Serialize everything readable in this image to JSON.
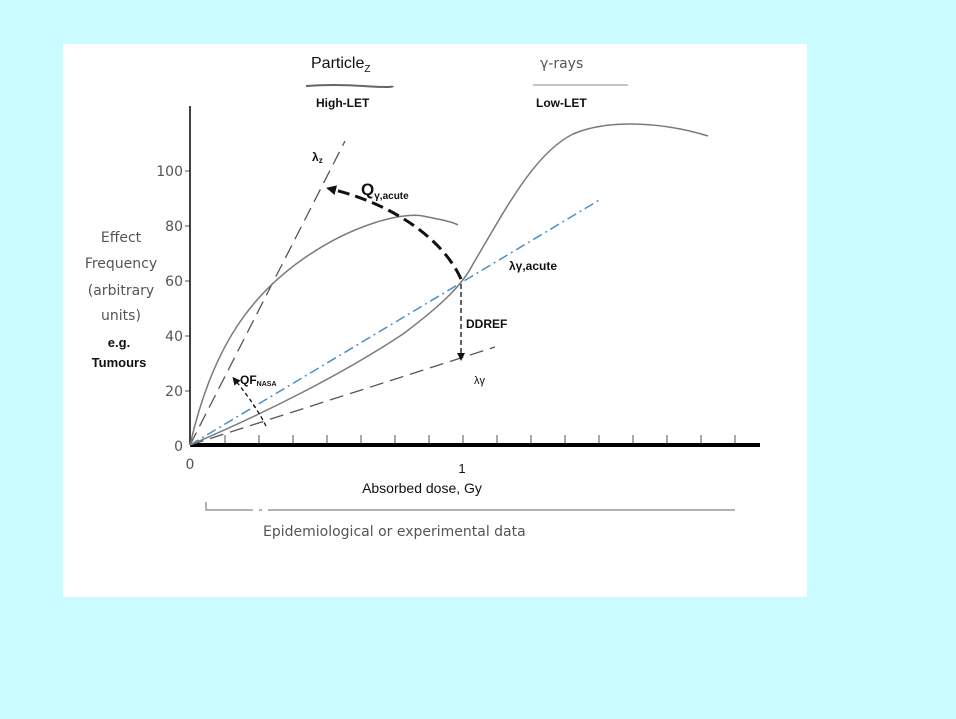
{
  "figure": {
    "header": {
      "particle": "Particle",
      "particle_sub": "Z",
      "high_let": "High-LET",
      "gamma": "γ-rays",
      "low_let": "Low-LET"
    },
    "y_axis": {
      "label_lines": [
        "Effect",
        "Frequency",
        "(arbitrary",
        "units)"
      ],
      "example_lines": [
        "e.g.",
        "Tumours"
      ],
      "ticks": [
        "0",
        "20",
        "40",
        "60",
        "80",
        "100"
      ]
    },
    "x_axis": {
      "ticks": [
        "0",
        "1"
      ],
      "label": "Absorbed dose, Gy",
      "range_note": "Epidemiological or experimental data"
    },
    "annotations": {
      "lambda_z": "λ",
      "lambda_z_sub": "z",
      "q_label": "Q",
      "q_sub": "γ,acute",
      "lambda_gamma_acute": "λγ,acute",
      "ddref": "DDREF",
      "lambda_gamma": "λγ",
      "qf": "QF",
      "qf_sub": "NASA"
    },
    "colors": {
      "curve": "#7a7a7a",
      "dashed": "#555555",
      "linear_fit": "#4a90c8",
      "arrow": "#111111",
      "axis": "#000000"
    }
  }
}
